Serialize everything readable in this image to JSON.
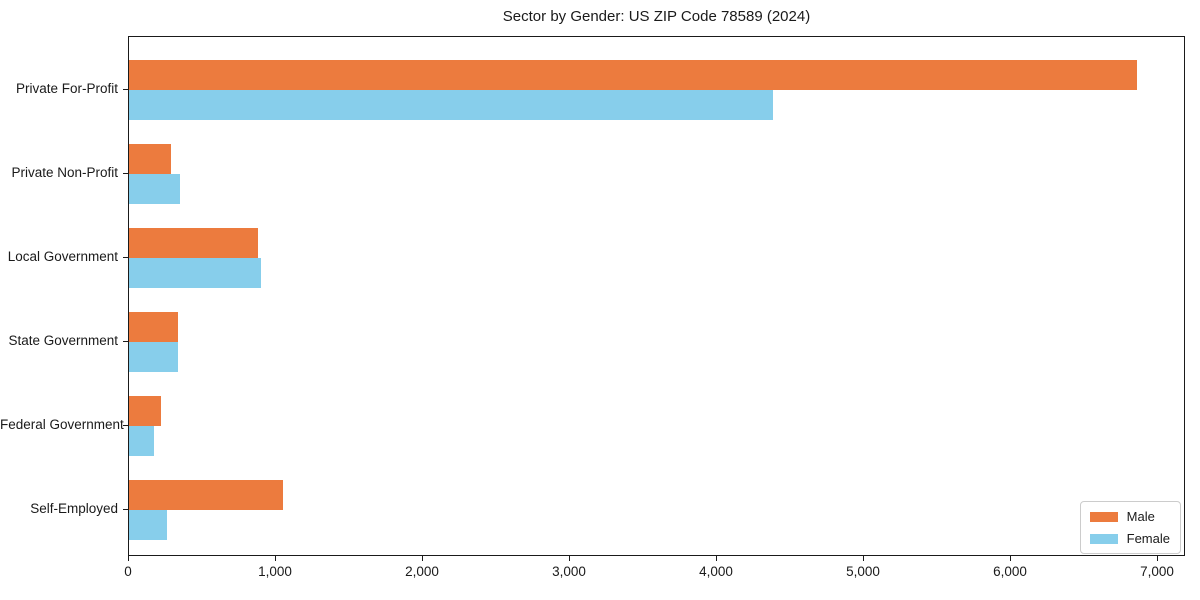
{
  "title": "Sector by Gender: US ZIP Code 78589 (2024)",
  "colors": {
    "male": "#EC7B3E",
    "female": "#87CEEB",
    "axis": "#1a1a1a",
    "legend_border": "#cccccc",
    "background": "#ffffff"
  },
  "legend": {
    "position": "lower right",
    "items": [
      {
        "label": "Male",
        "color": "#EC7B3E"
      },
      {
        "label": "Female",
        "color": "#87CEEB"
      }
    ]
  },
  "chart_data": {
    "type": "bar",
    "orientation": "horizontal",
    "title": "Sector by Gender: US ZIP Code 78589 (2024)",
    "categories": [
      "Private For-Profit",
      "Private Non-Profit",
      "Local Government",
      "State Government",
      "Federal Government",
      "Self-Employed"
    ],
    "series": [
      {
        "name": "Male",
        "color": "#EC7B3E",
        "values": [
          6860,
          285,
          880,
          330,
          220,
          1050
        ]
      },
      {
        "name": "Female",
        "color": "#87CEEB",
        "values": [
          4380,
          350,
          900,
          335,
          170,
          260
        ]
      }
    ],
    "xlabel": "",
    "ylabel": "",
    "xlim": [
      0,
      7190
    ],
    "xticks": [
      0,
      1000,
      2000,
      3000,
      4000,
      5000,
      6000,
      7000
    ],
    "xtick_labels": [
      "0",
      "1,000",
      "2,000",
      "3,000",
      "4,000",
      "5,000",
      "6,000",
      "7,000"
    ],
    "grid": false,
    "legend_position": "lower right"
  }
}
